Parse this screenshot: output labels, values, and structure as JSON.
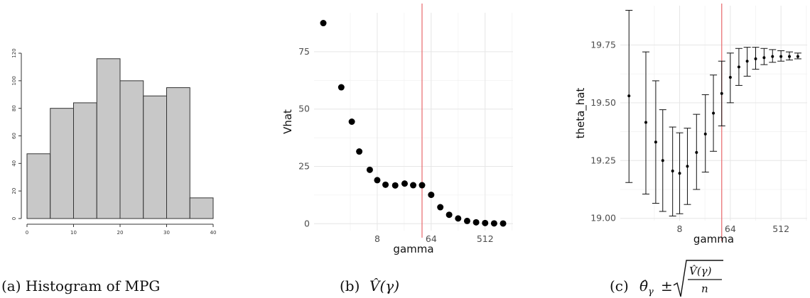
{
  "captions": {
    "a": "(a) Histogram of MPG",
    "b_prefix": "(b) ",
    "b_math": "V̂(γ)",
    "c_prefix": "(c) ",
    "c_math": "θ̂",
    "c_sub": "γ",
    "c_pm": "±",
    "c_num": "V̂(γ)",
    "c_den": "n"
  },
  "chart_data": [
    {
      "type": "bar",
      "panel": "a",
      "title": "",
      "xlabel": "",
      "ylabel": "",
      "bins": [
        {
          "x0": 0,
          "x1": 5,
          "value": 47
        },
        {
          "x0": 5,
          "x1": 10,
          "value": 80
        },
        {
          "x0": 10,
          "x1": 15,
          "value": 84
        },
        {
          "x0": 15,
          "x1": 20,
          "value": 116
        },
        {
          "x0": 20,
          "x1": 25,
          "value": 100
        },
        {
          "x0": 25,
          "x1": 30,
          "value": 89
        },
        {
          "x0": 30,
          "x1": 35,
          "value": 95
        },
        {
          "x0": 35,
          "x1": 40,
          "value": 15
        }
      ],
      "xlim": [
        0,
        40
      ],
      "ylim": [
        0,
        120
      ],
      "xticks": [
        "0",
        "10",
        "20",
        "30",
        "40"
      ],
      "yticks": [
        "0",
        "20",
        "40",
        "60",
        "80",
        "100",
        "120"
      ],
      "bar_color": "#c8c8c8",
      "grid": false
    },
    {
      "type": "scatter",
      "panel": "b",
      "title": "",
      "xlabel": "gamma",
      "ylabel": "Vhat",
      "x_scale": "log2",
      "x": [
        1,
        2,
        3,
        4,
        6,
        8,
        11,
        16,
        23,
        32,
        45,
        64,
        91,
        128,
        181,
        256,
        362,
        512,
        724,
        1024
      ],
      "y": [
        87.5,
        59.5,
        44.5,
        31.5,
        23.5,
        19,
        17,
        16.7,
        17.5,
        16.8,
        16.8,
        12.6,
        7.2,
        3.9,
        2.3,
        1.2,
        0.6,
        0.3,
        0.15,
        0.1
      ],
      "ylim": [
        -3,
        92
      ],
      "xticks": [
        "8",
        "64",
        "512"
      ],
      "yticks": [
        "0",
        "25",
        "50",
        "75"
      ],
      "vline": {
        "x": 45,
        "color": "#e8676a"
      },
      "grid": true
    },
    {
      "type": "scatter",
      "panel": "c",
      "title": "",
      "xlabel": "gamma",
      "ylabel": "theta_hat",
      "x_scale": "log2",
      "x": [
        1,
        2,
        3,
        4,
        6,
        8,
        11,
        16,
        23,
        32,
        45,
        64,
        91,
        128,
        181,
        256,
        362,
        512,
        724,
        1024
      ],
      "y": [
        19.53,
        19.415,
        19.33,
        19.25,
        19.205,
        19.195,
        19.225,
        19.285,
        19.365,
        19.455,
        19.54,
        19.61,
        19.655,
        19.68,
        19.69,
        19.695,
        19.7,
        19.7,
        19.7,
        19.7
      ],
      "ylow": [
        19.155,
        19.105,
        19.065,
        19.03,
        19.01,
        19.02,
        19.06,
        19.125,
        19.2,
        19.29,
        19.4,
        19.5,
        19.575,
        19.615,
        19.645,
        19.665,
        19.675,
        19.68,
        19.685,
        19.69
      ],
      "yhigh": [
        19.9,
        19.72,
        19.595,
        19.47,
        19.395,
        19.37,
        19.39,
        19.45,
        19.535,
        19.62,
        19.68,
        19.715,
        19.735,
        19.74,
        19.74,
        19.735,
        19.73,
        19.725,
        19.72,
        19.715
      ],
      "ylim": [
        18.99,
        19.92
      ],
      "xticks": [
        "8",
        "64",
        "512"
      ],
      "yticks": [
        "19.00",
        "19.25",
        "19.50",
        "19.75"
      ],
      "vline": {
        "x": 45,
        "color": "#e8676a"
      },
      "grid": true
    }
  ]
}
